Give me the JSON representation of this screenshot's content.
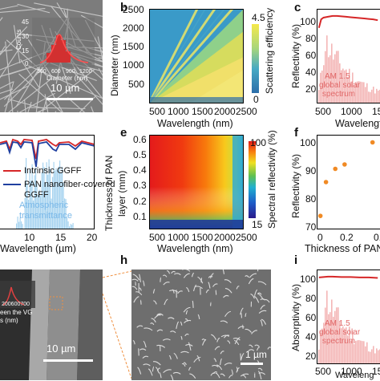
{
  "panels": {
    "a": {
      "label": "a",
      "scale": "10 µm",
      "inset_ticks": [
        "45",
        "30",
        "15",
        "0"
      ],
      "inset_x": [
        "300",
        "600",
        "900",
        "1200"
      ],
      "inset_ylabel": "Counts",
      "inset_xlabel": "Diameter (nm)"
    },
    "b": {
      "label": "b",
      "y_ticks": [
        "2500",
        "2000",
        "1500",
        "1000",
        "500"
      ],
      "x_ticks": [
        "500",
        "1000",
        "1500",
        "2000",
        "2500"
      ],
      "ylabel": "Diameter (nm)",
      "xlabel": "Wavelength (nm)",
      "cbar_max": "4.5",
      "cbar_min": "0",
      "cbar_label": "Scattering efficiency"
    },
    "c": {
      "label": "c",
      "y_ticks": [
        "100",
        "80",
        "60",
        "40",
        "20"
      ],
      "x_ticks": [
        "500",
        "1000",
        "150"
      ],
      "ylabel": "Reflectivity (%)",
      "xlabel": "Wavelength",
      "annot_1": "AM 1.5",
      "annot_2": "global solar",
      "annot_3": "spectrum"
    },
    "d": {
      "legend_1": "Intrinsic GGFF",
      "legend_2": "PAN nanofiber-covered",
      "legend_3": "GGFF",
      "annot_1": "Atmospheric",
      "annot_2": "transmittance",
      "x_ticks": [
        "10",
        "15",
        "20"
      ],
      "xlabel": "Wavelength (µm)"
    },
    "e": {
      "label": "e",
      "y_ticks": [
        "0.6",
        "0.5",
        "0.4",
        "0.3",
        "0.2",
        "0.1"
      ],
      "x_ticks": [
        "500",
        "1000",
        "1500",
        "2000",
        "2500"
      ],
      "ylabel_1": "Thickness of PAN",
      "ylabel_2": "layer (mm)",
      "xlabel": "Wavelength (nm)",
      "cbar_max": "100",
      "cbar_min": "15",
      "cbar_label": "Spectral reflectivity (%)"
    },
    "f": {
      "label": "f",
      "y_ticks": [
        "100",
        "90",
        "80",
        "70"
      ],
      "x_ticks": [
        "0",
        "0.2",
        "0."
      ],
      "ylabel": "Reflectivity (%)",
      "xlabel": "Thickness of PAN"
    },
    "g": {
      "scale": "10 µm",
      "inset_x": "200600700",
      "inset_l1": "een the VG",
      "inset_l2": "s (nm)"
    },
    "h": {
      "label": "h",
      "scale": "1 µm"
    },
    "i": {
      "label": "i",
      "y_ticks": [
        "100",
        "80",
        "60",
        "40",
        "20"
      ],
      "x_ticks": [
        "500",
        "1000",
        "150"
      ],
      "ylabel": "Absorptivity (%)",
      "xlabel": "Waveleng",
      "annot_1": "AM 1.5",
      "annot_2": "global solar",
      "annot_3": "spectrum"
    }
  },
  "chart_data": [
    {
      "type": "heatmap",
      "panel": "b",
      "xlabel": "Wavelength (nm)",
      "ylabel": "Diameter (nm)",
      "xlim": [
        250,
        2500
      ],
      "ylim": [
        0,
        2500
      ],
      "colorbar": [
        0,
        4.5
      ],
      "colorbar_label": "Scattering efficiency"
    },
    {
      "type": "line",
      "panel": "c",
      "xlabel": "Wavelength",
      "ylabel": "Reflectivity (%)",
      "ylim": [
        0,
        100
      ],
      "series": [
        {
          "x": [
            300,
            350,
            400,
            500,
            600,
            700,
            800,
            900,
            1000,
            1100,
            1200,
            1300,
            1400,
            1500,
            1600
          ],
          "values": [
            85,
            95,
            97,
            98,
            99,
            99,
            98.5,
            98,
            97.5,
            97,
            96.5,
            96,
            95.5,
            95,
            94
          ]
        }
      ]
    },
    {
      "type": "heatmap",
      "panel": "e",
      "xlabel": "Wavelength (nm)",
      "ylabel": "Thickness of PAN layer (mm)",
      "xlim": [
        250,
        2500
      ],
      "ylim": [
        0.02,
        0.6
      ],
      "colorbar": [
        15,
        100
      ],
      "colorbar_label": "Spectral reflectivity (%)"
    },
    {
      "type": "scatter",
      "panel": "f",
      "xlabel": "Thickness of PAN",
      "ylabel": "Reflectivity (%)",
      "ylim": [
        70,
        100
      ],
      "series": [
        {
          "x": [
            0.02,
            0.05,
            0.1,
            0.15,
            0.3
          ],
          "values": [
            73.5,
            85,
            89.5,
            91,
            98.5
          ]
        }
      ]
    },
    {
      "type": "line",
      "panel": "i",
      "xlabel": "Waveleng",
      "ylabel": "Absorptivity (%)",
      "ylim": [
        0,
        100
      ],
      "series": [
        {
          "x": [
            300,
            400,
            500,
            600,
            800,
            1000,
            1200,
            1400,
            1600
          ],
          "values": [
            98,
            98.5,
            99,
            99,
            98.5,
            98.5,
            98,
            98,
            97.5
          ]
        }
      ]
    }
  ],
  "colors": {
    "heat_blue": "#2c7fb8",
    "heat_yellow": "#f5e64a",
    "red_line": "#d62728",
    "blue_line": "#2040a0",
    "solar_fill": "#f4b6b6",
    "atmo_fill": "#a8d4f0",
    "dot": "#f08a24"
  }
}
